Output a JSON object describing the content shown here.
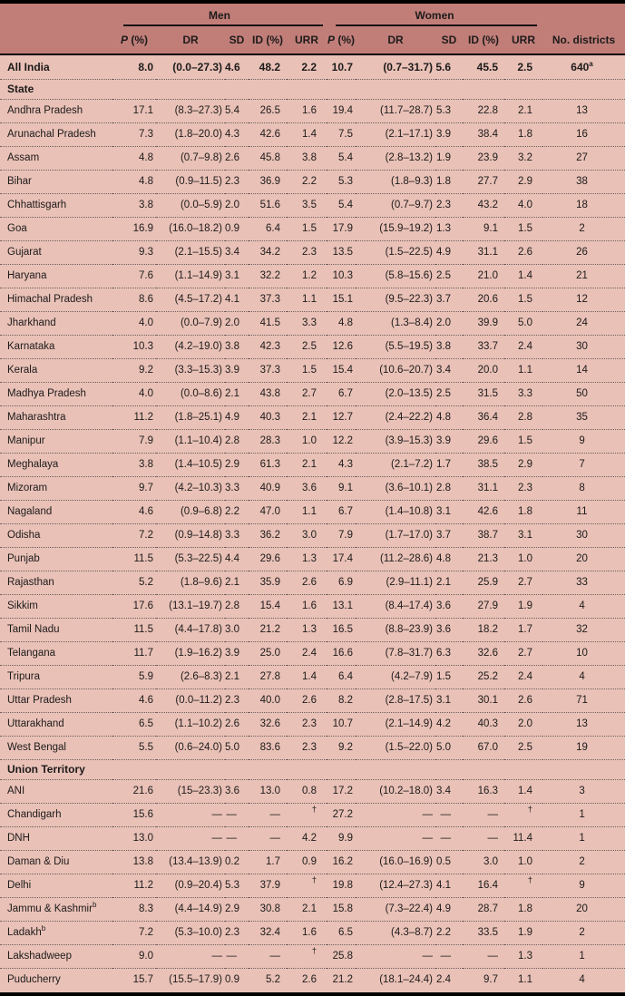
{
  "colors": {
    "header_bg": "#c17e79",
    "row_bg": "#e9c1b7",
    "text": "#1d1b1a",
    "rule_solid": "#000000",
    "rule_dotted": "#6e615d"
  },
  "header": {
    "groups": [
      {
        "label": "Men"
      },
      {
        "label": "Women"
      }
    ],
    "subcolumns": [
      "P (%)",
      "DR",
      "SD",
      "ID (%)",
      "URR"
    ],
    "districts_label": "No. districts"
  },
  "rows": [
    {
      "type": "data",
      "bold": true,
      "name": "All India",
      "men": [
        "8.0",
        "(0.0–27.3)",
        "4.6",
        "48.2",
        "2.2"
      ],
      "women": [
        "10.7",
        "(0.7–31.7)",
        "5.6",
        "45.5",
        "2.5"
      ],
      "districts": "640",
      "districts_sup": "a"
    },
    {
      "type": "section",
      "label": "State"
    },
    {
      "type": "data",
      "name": "Andhra Pradesh",
      "men": [
        "17.1",
        "(8.3–27.3)",
        "5.4",
        "26.5",
        "1.6"
      ],
      "women": [
        "19.4",
        "(11.7–28.7)",
        "5.3",
        "22.8",
        "2.1"
      ],
      "districts": "13"
    },
    {
      "type": "data",
      "name": "Arunachal Pradesh",
      "men": [
        "7.3",
        "(1.8–20.0)",
        "4.3",
        "42.6",
        "1.4"
      ],
      "women": [
        "7.5",
        "(2.1–17.1)",
        "3.9",
        "38.4",
        "1.8"
      ],
      "districts": "16"
    },
    {
      "type": "data",
      "name": "Assam",
      "men": [
        "4.8",
        "(0.7–9.8)",
        "2.6",
        "45.8",
        "3.8"
      ],
      "women": [
        "5.4",
        "(2.8–13.2)",
        "1.9",
        "23.9",
        "3.2"
      ],
      "districts": "27"
    },
    {
      "type": "data",
      "name": "Bihar",
      "men": [
        "4.8",
        "(0.9–11.5)",
        "2.3",
        "36.9",
        "2.2"
      ],
      "women": [
        "5.3",
        "(1.8–9.3)",
        "1.8",
        "27.7",
        "2.9"
      ],
      "districts": "38"
    },
    {
      "type": "data",
      "name": "Chhattisgarh",
      "men": [
        "3.8",
        "(0.0–5.9)",
        "2.0",
        "51.6",
        "3.5"
      ],
      "women": [
        "5.4",
        "(0.7–9.7)",
        "2.3",
        "43.2",
        "4.0"
      ],
      "districts": "18"
    },
    {
      "type": "data",
      "name": "Goa",
      "men": [
        "16.9",
        "(16.0–18.2)",
        "0.9",
        "6.4",
        "1.5"
      ],
      "women": [
        "17.9",
        "(15.9–19.2)",
        "1.3",
        "9.1",
        "1.5"
      ],
      "districts": "2"
    },
    {
      "type": "data",
      "name": "Gujarat",
      "men": [
        "9.3",
        "(2.1–15.5)",
        "3.4",
        "34.2",
        "2.3"
      ],
      "women": [
        "13.5",
        "(1.5–22.5)",
        "4.9",
        "31.1",
        "2.6"
      ],
      "districts": "26"
    },
    {
      "type": "data",
      "name": "Haryana",
      "men": [
        "7.6",
        "(1.1–14.9)",
        "3.1",
        "32.2",
        "1.2"
      ],
      "women": [
        "10.3",
        "(5.8–15.6)",
        "2.5",
        "21.0",
        "1.4"
      ],
      "districts": "21"
    },
    {
      "type": "data",
      "name": "Himachal Pradesh",
      "men": [
        "8.6",
        "(4.5–17.2)",
        "4.1",
        "37.3",
        "1.1"
      ],
      "women": [
        "15.1",
        "(9.5–22.3)",
        "3.7",
        "20.6",
        "1.5"
      ],
      "districts": "12"
    },
    {
      "type": "data",
      "name": "Jharkhand",
      "men": [
        "4.0",
        "(0.0–7.9)",
        "2.0",
        "41.5",
        "3.3"
      ],
      "women": [
        "4.8",
        "(1.3–8.4)",
        "2.0",
        "39.9",
        "5.0"
      ],
      "districts": "24"
    },
    {
      "type": "data",
      "name": "Karnataka",
      "men": [
        "10.3",
        "(4.2–19.0)",
        "3.8",
        "42.3",
        "2.5"
      ],
      "women": [
        "12.6",
        "(5.5–19.5)",
        "3.8",
        "33.7",
        "2.4"
      ],
      "districts": "30"
    },
    {
      "type": "data",
      "name": "Kerala",
      "men": [
        "9.2",
        "(3.3–15.3)",
        "3.9",
        "37.3",
        "1.5"
      ],
      "women": [
        "15.4",
        "(10.6–20.7)",
        "3.4",
        "20.0",
        "1.1"
      ],
      "districts": "14"
    },
    {
      "type": "data",
      "name": "Madhya Pradesh",
      "men": [
        "4.0",
        "(0.0–8.6)",
        "2.1",
        "43.8",
        "2.7"
      ],
      "women": [
        "6.7",
        "(2.0–13.5)",
        "2.5",
        "31.5",
        "3.3"
      ],
      "districts": "50"
    },
    {
      "type": "data",
      "name": "Maharashtra",
      "men": [
        "11.2",
        "(1.8–25.1)",
        "4.9",
        "40.3",
        "2.1"
      ],
      "women": [
        "12.7",
        "(2.4–22.2)",
        "4.8",
        "36.4",
        "2.8"
      ],
      "districts": "35"
    },
    {
      "type": "data",
      "name": "Manipur",
      "men": [
        "7.9",
        "(1.1–10.4)",
        "2.8",
        "28.3",
        "1.0"
      ],
      "women": [
        "12.2",
        "(3.9–15.3)",
        "3.9",
        "29.6",
        "1.5"
      ],
      "districts": "9"
    },
    {
      "type": "data",
      "name": "Meghalaya",
      "men": [
        "3.8",
        "(1.4–10.5)",
        "2.9",
        "61.3",
        "2.1"
      ],
      "women": [
        "4.3",
        "(2.1–7.2)",
        "1.7",
        "38.5",
        "2.9"
      ],
      "districts": "7"
    },
    {
      "type": "data",
      "name": "Mizoram",
      "men": [
        "9.7",
        "(4.2–10.3)",
        "3.3",
        "40.9",
        "3.6"
      ],
      "women": [
        "9.1",
        "(3.6–10.1)",
        "2.8",
        "31.1",
        "2.3"
      ],
      "districts": "8"
    },
    {
      "type": "data",
      "name": "Nagaland",
      "men": [
        "4.6",
        "(0.9–6.8)",
        "2.2",
        "47.0",
        "1.1"
      ],
      "women": [
        "6.7",
        "(1.4–10.8)",
        "3.1",
        "42.6",
        "1.8"
      ],
      "districts": "11"
    },
    {
      "type": "data",
      "name": "Odisha",
      "men": [
        "7.2",
        "(0.9–14.8)",
        "3.3",
        "36.2",
        "3.0"
      ],
      "women": [
        "7.9",
        "(1.7–17.0)",
        "3.7",
        "38.7",
        "3.1"
      ],
      "districts": "30"
    },
    {
      "type": "data",
      "name": "Punjab",
      "men": [
        "11.5",
        "(5.3–22.5)",
        "4.4",
        "29.6",
        "1.3"
      ],
      "women": [
        "17.4",
        "(11.2–28.6)",
        "4.8",
        "21.3",
        "1.0"
      ],
      "districts": "20"
    },
    {
      "type": "data",
      "name": "Rajasthan",
      "men": [
        "5.2",
        "(1.8–9.6)",
        "2.1",
        "35.9",
        "2.6"
      ],
      "women": [
        "6.9",
        "(2.9–11.1)",
        "2.1",
        "25.9",
        "2.7"
      ],
      "districts": "33"
    },
    {
      "type": "data",
      "name": "Sikkim",
      "men": [
        "17.6",
        "(13.1–19.7)",
        "2.8",
        "15.4",
        "1.6"
      ],
      "women": [
        "13.1",
        "(8.4–17.4)",
        "3.6",
        "27.9",
        "1.9"
      ],
      "districts": "4"
    },
    {
      "type": "data",
      "name": "Tamil Nadu",
      "men": [
        "11.5",
        "(4.4–17.8)",
        "3.0",
        "21.2",
        "1.3"
      ],
      "women": [
        "16.5",
        "(8.8–23.9)",
        "3.6",
        "18.2",
        "1.7"
      ],
      "districts": "32"
    },
    {
      "type": "data",
      "name": "Telangana",
      "men": [
        "11.7",
        "(1.9–16.2)",
        "3.9",
        "25.0",
        "2.4"
      ],
      "women": [
        "16.6",
        "(7.8–31.7)",
        "6.3",
        "32.6",
        "2.7"
      ],
      "districts": "10"
    },
    {
      "type": "data",
      "name": "Tripura",
      "men": [
        "5.9",
        "(2.6–8.3)",
        "2.1",
        "27.8",
        "1.4"
      ],
      "women": [
        "6.4",
        "(4.2–7.9)",
        "1.5",
        "25.2",
        "2.4"
      ],
      "districts": "4"
    },
    {
      "type": "data",
      "name": "Uttar Pradesh",
      "men": [
        "4.6",
        "(0.0–11.2)",
        "2.3",
        "40.0",
        "2.6"
      ],
      "women": [
        "8.2",
        "(2.8–17.5)",
        "3.1",
        "30.1",
        "2.6"
      ],
      "districts": "71"
    },
    {
      "type": "data",
      "name": "Uttarakhand",
      "men": [
        "6.5",
        "(1.1–10.2)",
        "2.6",
        "32.6",
        "2.3"
      ],
      "women": [
        "10.7",
        "(2.1–14.9)",
        "4.2",
        "40.3",
        "2.0"
      ],
      "districts": "13"
    },
    {
      "type": "data",
      "name": "West Bengal",
      "men": [
        "5.5",
        "(0.6–24.0)",
        "5.0",
        "83.6",
        "2.3"
      ],
      "women": [
        "9.2",
        "(1.5–22.0)",
        "5.0",
        "67.0",
        "2.5"
      ],
      "districts": "19"
    },
    {
      "type": "section",
      "label": "Union Territory"
    },
    {
      "type": "data",
      "name": "ANI",
      "men": [
        "21.6",
        "(15–23.3)",
        "3.6",
        "13.0",
        "0.8"
      ],
      "women": [
        "17.2",
        "(10.2–18.0)",
        "3.4",
        "16.3",
        "1.4"
      ],
      "districts": "3"
    },
    {
      "type": "data",
      "name": "Chandigarh",
      "men": [
        "15.6",
        "—",
        "—",
        "—",
        "†"
      ],
      "women": [
        "27.2",
        "—",
        "—",
        "—",
        "†"
      ],
      "districts": "1"
    },
    {
      "type": "data",
      "name": "DNH",
      "men": [
        "13.0",
        "—",
        "—",
        "—",
        "4.2"
      ],
      "women": [
        "9.9",
        "—",
        "—",
        "—",
        "11.4"
      ],
      "districts": "1"
    },
    {
      "type": "data",
      "name": "Daman & Diu",
      "men": [
        "13.8",
        "(13.4–13.9)",
        "0.2",
        "1.7",
        "0.9"
      ],
      "women": [
        "16.2",
        "(16.0–16.9)",
        "0.5",
        "3.0",
        "1.0"
      ],
      "districts": "2"
    },
    {
      "type": "data",
      "name": "Delhi",
      "men": [
        "11.2",
        "(0.9–20.4)",
        "5.3",
        "37.9",
        "†"
      ],
      "women": [
        "19.8",
        "(12.4–27.3)",
        "4.1",
        "16.4",
        "†"
      ],
      "districts": "9"
    },
    {
      "type": "data",
      "name": "Jammu & Kashmir",
      "name_sup": "b",
      "men": [
        "8.3",
        "(4.4–14.9)",
        "2.9",
        "30.8",
        "2.1"
      ],
      "women": [
        "15.8",
        "(7.3–22.4)",
        "4.9",
        "28.7",
        "1.8"
      ],
      "districts": "20"
    },
    {
      "type": "data",
      "name": "Ladakh",
      "name_sup": "b",
      "men": [
        "7.2",
        "(5.3–10.0)",
        "2.3",
        "32.4",
        "1.6"
      ],
      "women": [
        "6.5",
        "(4.3–8.7)",
        "2.2",
        "33.5",
        "1.9"
      ],
      "districts": "2"
    },
    {
      "type": "data",
      "name": "Lakshadweep",
      "men": [
        "9.0",
        "—",
        "—",
        "—",
        "†"
      ],
      "women": [
        "25.8",
        "—",
        "—",
        "—",
        "1.3"
      ],
      "districts": "1"
    },
    {
      "type": "data",
      "name": "Puducherry",
      "men": [
        "15.7",
        "(15.5–17.9)",
        "0.9",
        "5.2",
        "2.6"
      ],
      "women": [
        "21.2",
        "(18.1–24.4)",
        "2.4",
        "9.7",
        "1.1"
      ],
      "districts": "4"
    }
  ]
}
